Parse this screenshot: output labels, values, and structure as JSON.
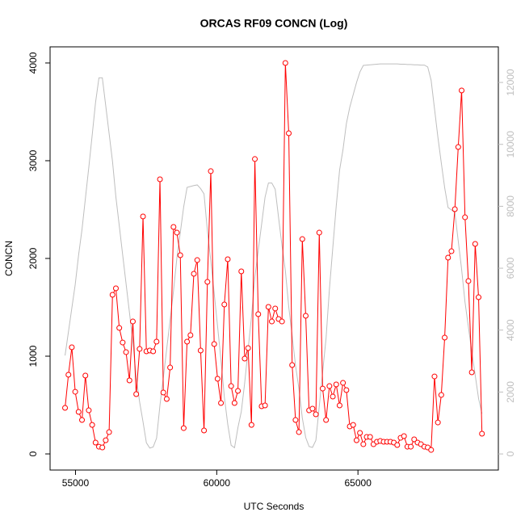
{
  "chart_data": {
    "type": "line",
    "title": "ORCAS RF09 CONCN (Log)",
    "x_label": "UTC Seconds",
    "y_label": "CONCN",
    "x": [
      54630,
      54750,
      54870,
      54990,
      55110,
      55230,
      55350,
      55470,
      55590,
      55710,
      55830,
      55950,
      56070,
      56190,
      56310,
      56430,
      56550,
      56670,
      56790,
      56910,
      57030,
      57150,
      57270,
      57390,
      57510,
      57630,
      57750,
      57870,
      57990,
      58110,
      58230,
      58350,
      58470,
      58590,
      58710,
      58830,
      58950,
      59070,
      59190,
      59310,
      59430,
      59550,
      59670,
      59790,
      59910,
      60030,
      60150,
      60270,
      60390,
      60510,
      60630,
      60750,
      60870,
      60990,
      61110,
      61230,
      61350,
      61470,
      61590,
      61710,
      61830,
      61950,
      62070,
      62190,
      62310,
      62430,
      62550,
      62670,
      62790,
      62910,
      63030,
      63150,
      63270,
      63390,
      63510,
      63630,
      63750,
      63870,
      63990,
      64110,
      64230,
      64350,
      64470,
      64590,
      64710,
      64830,
      64950,
      65070,
      65190,
      65310,
      65430,
      65550,
      65670,
      65790,
      65910,
      66030,
      66150,
      66270,
      66390,
      66510,
      66630,
      66750,
      66870,
      66990,
      67110,
      67230,
      67350,
      67470,
      67590,
      67710,
      67830,
      67950,
      68070,
      68190,
      68310,
      68430,
      68550,
      68670,
      68790,
      68910,
      69030,
      69150,
      69270,
      69390
    ],
    "series": [
      {
        "color": "#ff0000",
        "markers": true,
        "values": [
          471,
          810,
          1091,
          636,
          430,
          347,
          802,
          446,
          297,
          116,
          74,
          66,
          140,
          223,
          1628,
          1694,
          1289,
          1140,
          1041,
          752,
          1355,
          612,
          1074,
          2430,
          1050,
          1058,
          1050,
          1149,
          2810,
          628,
          562,
          884,
          2322,
          2264,
          2033,
          264,
          1149,
          1215,
          1843,
          1983,
          1058,
          240,
          1760,
          2893,
          1124,
          769,
          521,
          1529,
          1992,
          694,
          521,
          645,
          1868,
          975,
          1083,
          297,
          3017,
          1430,
          488,
          496,
          1504,
          1355,
          1488,
          1380,
          1355,
          4000,
          3281,
          909,
          347,
          223,
          2198,
          1413,
          446,
          463,
          405,
          2264,
          669,
          347,
          694,
          587,
          711,
          496,
          727,
          653,
          281,
          297,
          140,
          215,
          99,
          174,
          174,
          99,
          124,
          132,
          124,
          124,
          124,
          116,
          91,
          165,
          182,
          74,
          74,
          149,
          116,
          99,
          74,
          66,
          41,
          793,
          322,
          603,
          1190,
          2008,
          2074,
          2504,
          3140,
          3719,
          2421,
          1769,
          835,
          2149,
          1603,
          207
        ]
      },
      {
        "color": "#bebebe",
        "markers": false,
        "axis": "y2",
        "values": [
          3180,
          3944,
          4708,
          5472,
          6427,
          7250,
          8250,
          9250,
          10290,
          11355,
          12150,
          12150,
          11250,
          10350,
          9450,
          8300,
          7370,
          6430,
          5500,
          4570,
          3630,
          2470,
          1680,
          1040,
          360,
          190,
          225,
          510,
          1570,
          2470,
          3400,
          4330,
          5270,
          6340,
          7150,
          7980,
          8610,
          8640,
          8670,
          8690,
          8570,
          8400,
          7200,
          6240,
          5190,
          4120,
          3040,
          1840,
          960,
          280,
          200,
          850,
          1370,
          2300,
          3370,
          4430,
          5710,
          6570,
          7430,
          8290,
          8750,
          8750,
          8550,
          7630,
          6730,
          5920,
          4750,
          3820,
          2850,
          2110,
          1160,
          530,
          240,
          210,
          440,
          1540,
          2650,
          3730,
          5330,
          6670,
          8000,
          9170,
          9830,
          10670,
          11200,
          11600,
          12000,
          12340,
          12550,
          12560,
          12570,
          12580,
          12590,
          12600,
          12600,
          12600,
          12600,
          12600,
          12600,
          12590,
          12590,
          12580,
          12580,
          12570,
          12570,
          12560,
          12560,
          12500,
          12070,
          11150,
          10230,
          9400,
          8600,
          7960,
          7880,
          7800,
          6880,
          5960,
          4900,
          4100,
          3310,
          2550,
          1790,
          1300
        ]
      }
    ],
    "xlim": [
      54100,
      69970
    ],
    "xticks": [
      55000,
      60000,
      65000
    ],
    "ylim": [
      -165,
      4165
    ],
    "yticks": [
      0,
      1000,
      2000,
      3000,
      4000
    ],
    "y2lim": [
      -520,
      13150
    ],
    "y2ticks": [
      0,
      2000,
      4000,
      6000,
      8000,
      10000,
      12000
    ],
    "y2_color": "#bebebe"
  }
}
